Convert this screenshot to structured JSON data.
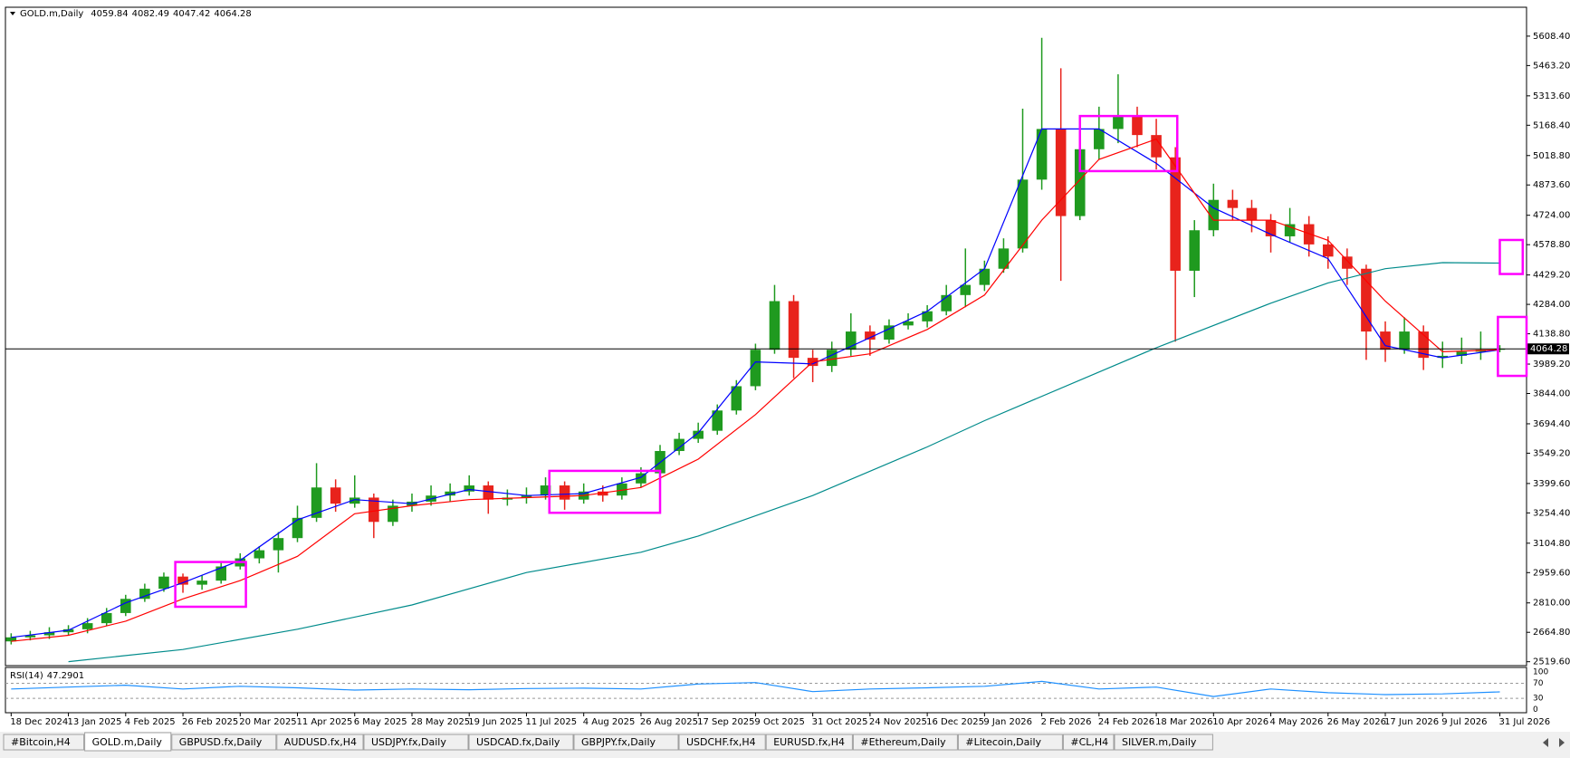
{
  "chart_data": {
    "type": "candlestick",
    "symbol": "GOLD.m,Daily",
    "up_color": "#1f9a1f",
    "down_color": "#e8231c",
    "xlim": [
      -0.3,
      79.4
    ],
    "ylim": [
      2504.8,
      5746.6
    ],
    "yticks": [
      {
        "value": 5608.4,
        "label": "5608.40"
      },
      {
        "value": 5463.2,
        "label": "5463.20"
      },
      {
        "value": 5313.6,
        "label": "5313.60"
      },
      {
        "value": 5168.4,
        "label": "5168.40"
      },
      {
        "value": 5018.8,
        "label": "5018.80"
      },
      {
        "value": 4873.6,
        "label": "4873.60"
      },
      {
        "value": 4724,
        "label": "4724.00"
      },
      {
        "value": 4578.8,
        "label": "4578.80"
      },
      {
        "value": 4429.2,
        "label": "4429.20"
      },
      {
        "value": 4284,
        "label": "4284.00"
      },
      {
        "value": 4138.8,
        "label": "4138.80"
      },
      {
        "value": 3989.2,
        "label": "3989.20"
      },
      {
        "value": 3844,
        "label": "3844.00"
      },
      {
        "value": 3694.4,
        "label": "3694.40"
      },
      {
        "value": 3549.2,
        "label": "3549.20"
      },
      {
        "value": 3399.6,
        "label": "3399.60"
      },
      {
        "value": 3254.4,
        "label": "3254.40"
      },
      {
        "value": 3104.8,
        "label": "3104.80"
      },
      {
        "value": 2959.6,
        "label": "2959.60"
      },
      {
        "value": 2810,
        "label": "2810.00"
      },
      {
        "value": 2664.8,
        "label": "2664.80"
      },
      {
        "value": 2519.6,
        "label": "2519.60"
      }
    ],
    "xticks": [
      "18 Dec 2024",
      "13 Jan 2025",
      "4 Feb 2025",
      "26 Feb 2025",
      "20 Mar 2025",
      "11 Apr 2025",
      "6 May 2025",
      "28 May 2025",
      "19 Jun 2025",
      "11 Jul 2025",
      "4 Aug 2025",
      "26 Aug 2025",
      "17 Sep 2025",
      "9 Oct 2025",
      "31 Oct 2025",
      "24 Nov 2025",
      "16 Dec 2025",
      "9 Jan 2026",
      "2 Feb 2026",
      "24 Feb 2026",
      "18 Mar 2026",
      "10 Apr 2026",
      "4 May 2026",
      "26 May 2026",
      "17 Jun 2026",
      "9 Jul 2026",
      "31 Jul 2026"
    ],
    "candles": [
      [
        2620,
        2660,
        2605,
        2640
      ],
      [
        2640,
        2672,
        2625,
        2650
      ],
      [
        2650,
        2690,
        2632,
        2665
      ],
      [
        2665,
        2700,
        2648,
        2680
      ],
      [
        2680,
        2735,
        2660,
        2710
      ],
      [
        2710,
        2785,
        2695,
        2760
      ],
      [
        2760,
        2850,
        2745,
        2830
      ],
      [
        2830,
        2905,
        2815,
        2880
      ],
      [
        2880,
        2960,
        2865,
        2940
      ],
      [
        2940,
        2955,
        2860,
        2900
      ],
      [
        2900,
        2945,
        2875,
        2920
      ],
      [
        2920,
        3010,
        2905,
        2990
      ],
      [
        2990,
        3055,
        2975,
        3030
      ],
      [
        3030,
        3090,
        3005,
        3070
      ],
      [
        3070,
        3160,
        2960,
        3130
      ],
      [
        3130,
        3290,
        3110,
        3230
      ],
      [
        3230,
        3500,
        3210,
        3380
      ],
      [
        3380,
        3420,
        3260,
        3300
      ],
      [
        3300,
        3440,
        3280,
        3330
      ],
      [
        3330,
        3350,
        3130,
        3210
      ],
      [
        3210,
        3320,
        3190,
        3290
      ],
      [
        3290,
        3350,
        3260,
        3310
      ],
      [
        3310,
        3390,
        3290,
        3340
      ],
      [
        3340,
        3400,
        3310,
        3360
      ],
      [
        3360,
        3440,
        3340,
        3390
      ],
      [
        3390,
        3410,
        3250,
        3320
      ],
      [
        3320,
        3370,
        3290,
        3330
      ],
      [
        3330,
        3380,
        3300,
        3340
      ],
      [
        3340,
        3430,
        3320,
        3390
      ],
      [
        3390,
        3410,
        3270,
        3320
      ],
      [
        3320,
        3400,
        3300,
        3360
      ],
      [
        3360,
        3390,
        3310,
        3340
      ],
      [
        3340,
        3430,
        3320,
        3400
      ],
      [
        3400,
        3480,
        3380,
        3450
      ],
      [
        3450,
        3590,
        3440,
        3560
      ],
      [
        3560,
        3650,
        3540,
        3620
      ],
      [
        3620,
        3700,
        3600,
        3660
      ],
      [
        3660,
        3790,
        3640,
        3760
      ],
      [
        3760,
        3910,
        3740,
        3880
      ],
      [
        3880,
        4090,
        3860,
        4060
      ],
      [
        4060,
        4380,
        4040,
        4300
      ],
      [
        4300,
        4330,
        3920,
        4020
      ],
      [
        4020,
        4060,
        3900,
        3980
      ],
      [
        3980,
        4100,
        3950,
        4060
      ],
      [
        4060,
        4240,
        4030,
        4150
      ],
      [
        4150,
        4180,
        4030,
        4110
      ],
      [
        4110,
        4210,
        4090,
        4180
      ],
      [
        4180,
        4240,
        4160,
        4200
      ],
      [
        4200,
        4280,
        4170,
        4250
      ],
      [
        4250,
        4380,
        4230,
        4330
      ],
      [
        4330,
        4560,
        4270,
        4380
      ],
      [
        4380,
        4500,
        4350,
        4460
      ],
      [
        4460,
        4610,
        4440,
        4560
      ],
      [
        4560,
        5250,
        4540,
        4900
      ],
      [
        4900,
        5600,
        4850,
        5150
      ],
      [
        5150,
        5450,
        4400,
        4720
      ],
      [
        4720,
        5100,
        4700,
        5050
      ],
      [
        5050,
        5260,
        5000,
        5150
      ],
      [
        5150,
        5420,
        5080,
        5210
      ],
      [
        5210,
        5260,
        5060,
        5120
      ],
      [
        5120,
        5200,
        4950,
        5010
      ],
      [
        5010,
        5060,
        4100,
        4450
      ],
      [
        4450,
        4700,
        4320,
        4650
      ],
      [
        4650,
        4880,
        4620,
        4800
      ],
      [
        4800,
        4850,
        4700,
        4760
      ],
      [
        4760,
        4800,
        4640,
        4700
      ],
      [
        4700,
        4730,
        4540,
        4620
      ],
      [
        4620,
        4760,
        4590,
        4680
      ],
      [
        4680,
        4720,
        4520,
        4580
      ],
      [
        4580,
        4620,
        4460,
        4520
      ],
      [
        4520,
        4560,
        4380,
        4460
      ],
      [
        4460,
        4480,
        4010,
        4150
      ],
      [
        4150,
        4200,
        4000,
        4060
      ],
      [
        4060,
        4220,
        4040,
        4150
      ],
      [
        4150,
        4180,
        3960,
        4020
      ],
      [
        4020,
        4100,
        3970,
        4030
      ],
      [
        4030,
        4120,
        3990,
        4050
      ],
      [
        4050,
        4150,
        4010,
        4059.84
      ],
      [
        4059.84,
        4082.49,
        4047.42,
        4064.28
      ]
    ],
    "lines": [
      {
        "color": "#0000ff",
        "x": [
          0,
          3,
          6,
          9,
          12,
          15,
          18,
          21,
          24,
          27,
          30,
          33,
          36,
          39,
          42,
          45,
          48,
          51,
          54,
          57,
          60,
          63,
          66,
          69,
          72,
          75,
          78
        ],
        "values": [
          2640,
          2675,
          2810,
          2910,
          3020,
          3220,
          3320,
          3300,
          3370,
          3340,
          3350,
          3430,
          3650,
          4000,
          3990,
          4120,
          4250,
          4460,
          5150,
          5150,
          4980,
          4760,
          4630,
          4510,
          4080,
          4020,
          4060
        ]
      },
      {
        "color": "#ff0000",
        "x": [
          0,
          3,
          6,
          9,
          12,
          15,
          18,
          21,
          24,
          27,
          30,
          33,
          36,
          39,
          42,
          45,
          48,
          51,
          54,
          57,
          60,
          63,
          66,
          69,
          72,
          75,
          78
        ],
        "values": [
          2620,
          2650,
          2720,
          2830,
          2920,
          3040,
          3250,
          3290,
          3320,
          3330,
          3340,
          3380,
          3520,
          3740,
          4000,
          4040,
          4160,
          4330,
          4700,
          5000,
          5100,
          4700,
          4700,
          4600,
          4300,
          4050,
          4060
        ]
      },
      {
        "color": "#008b8b",
        "x": [
          3,
          9,
          15,
          21,
          27,
          33,
          36,
          42,
          48,
          51,
          57,
          60,
          66,
          69,
          72,
          75,
          78
        ],
        "values": [
          2520,
          2580,
          2680,
          2800,
          2960,
          3060,
          3140,
          3340,
          3580,
          3710,
          3950,
          4070,
          4290,
          4390,
          4460,
          4490,
          4488
        ]
      }
    ],
    "boxes": [
      [
        8.6,
        12.3,
        2791,
        3012
      ],
      [
        28.2,
        34,
        3255,
        3462
      ],
      [
        56,
        61.1,
        4942,
        5214
      ],
      [
        78,
        79.2,
        4434,
        4602
      ],
      [
        77.9,
        79.4,
        3931,
        4222
      ]
    ],
    "box_color": "#ff00ff",
    "rsi": {
      "label": "RSI(14)",
      "color": "#1e90ff",
      "ylim": [
        -8,
        112
      ],
      "yticks": [
        100,
        70,
        30,
        0
      ],
      "x": [
        0,
        3,
        6,
        9,
        12,
        15,
        18,
        21,
        24,
        27,
        30,
        33,
        36,
        39,
        42,
        45,
        48,
        51,
        54,
        57,
        60,
        63,
        66,
        69,
        72,
        75,
        78
      ],
      "values": [
        55,
        60,
        65,
        55,
        62,
        58,
        52,
        55,
        53,
        56,
        57,
        55,
        68,
        72,
        48,
        55,
        58,
        62,
        75,
        55,
        60,
        35,
        55,
        45,
        40,
        42,
        47.2901
      ]
    },
    "tabs": [
      "#Bitcoin,H4",
      "GOLD.m,Daily",
      "GBPUSD.fx,Daily",
      "AUDUSD.fx,H4",
      "USDJPY.fx,Daily",
      "USDCAD.fx,Daily",
      "GBPJPY.fx,Daily",
      "USDCHF.fx,H4",
      "EURUSD.fx,H4",
      "#Ethereum,Daily",
      "#Litecoin,Daily",
      "#CL,H4",
      "SILVER.m,Daily"
    ],
    "active_tab": 1
  }
}
